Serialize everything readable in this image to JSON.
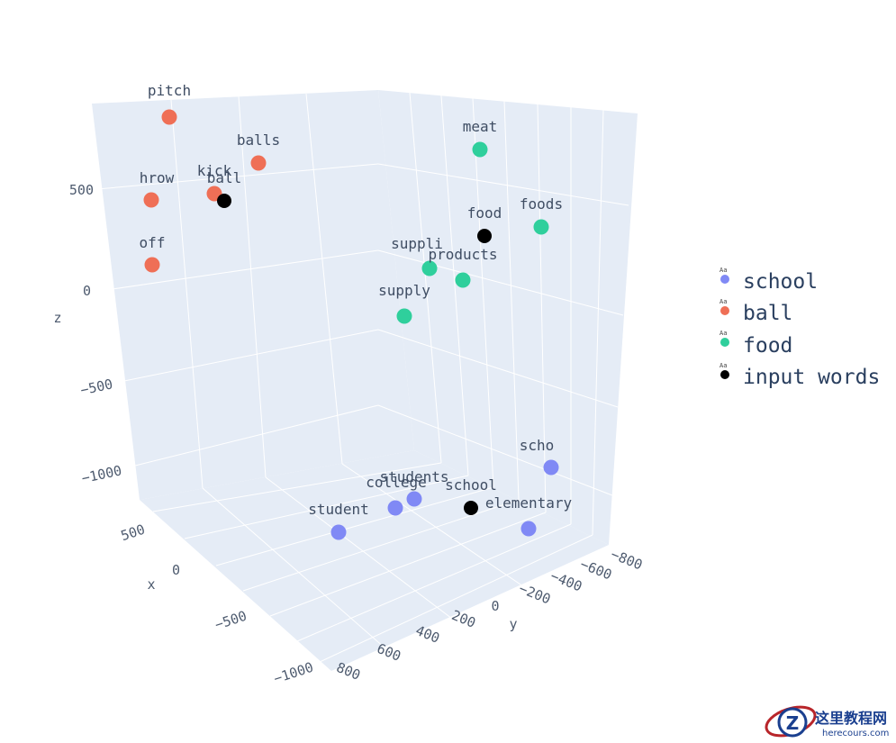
{
  "chart_data": {
    "type": "scatter3d",
    "title": "",
    "axes": {
      "x": {
        "label": "x",
        "ticks": [
          "500",
          "0",
          "−500",
          "−1000"
        ]
      },
      "y": {
        "label": "y",
        "ticks": [
          "800",
          "600",
          "400",
          "200",
          "0",
          "−200",
          "−400",
          "−600",
          "−800"
        ]
      },
      "z": {
        "label": "z",
        "ticks": [
          "500",
          "0",
          "−500",
          "−1000"
        ]
      }
    },
    "series": [
      {
        "name": "school",
        "color": "#8089f5",
        "points": [
          {
            "label": "student"
          },
          {
            "label": "college"
          },
          {
            "label": "students"
          },
          {
            "label": "elementary"
          },
          {
            "label": "scho"
          }
        ]
      },
      {
        "name": "ball",
        "color": "#ef6f56",
        "points": [
          {
            "label": "pitch"
          },
          {
            "label": "balls"
          },
          {
            "label": "kick"
          },
          {
            "label": "hrow"
          },
          {
            "label": "off"
          }
        ]
      },
      {
        "name": "food",
        "color": "#2fcf9c",
        "points": [
          {
            "label": "meat"
          },
          {
            "label": "foods"
          },
          {
            "label": "suppli"
          },
          {
            "label": "products"
          },
          {
            "label": "supply"
          }
        ]
      },
      {
        "name": "input words",
        "color": "#000000",
        "points": [
          {
            "label": "ball"
          },
          {
            "label": "food"
          },
          {
            "label": "school"
          }
        ]
      }
    ],
    "legend": {
      "position": "right",
      "items": [
        "school",
        "ball",
        "food",
        "input words"
      ],
      "symbol_text": "Aa"
    }
  },
  "watermark": {
    "text": "这里教程网",
    "url": "herecours.com",
    "letter": "Z"
  }
}
